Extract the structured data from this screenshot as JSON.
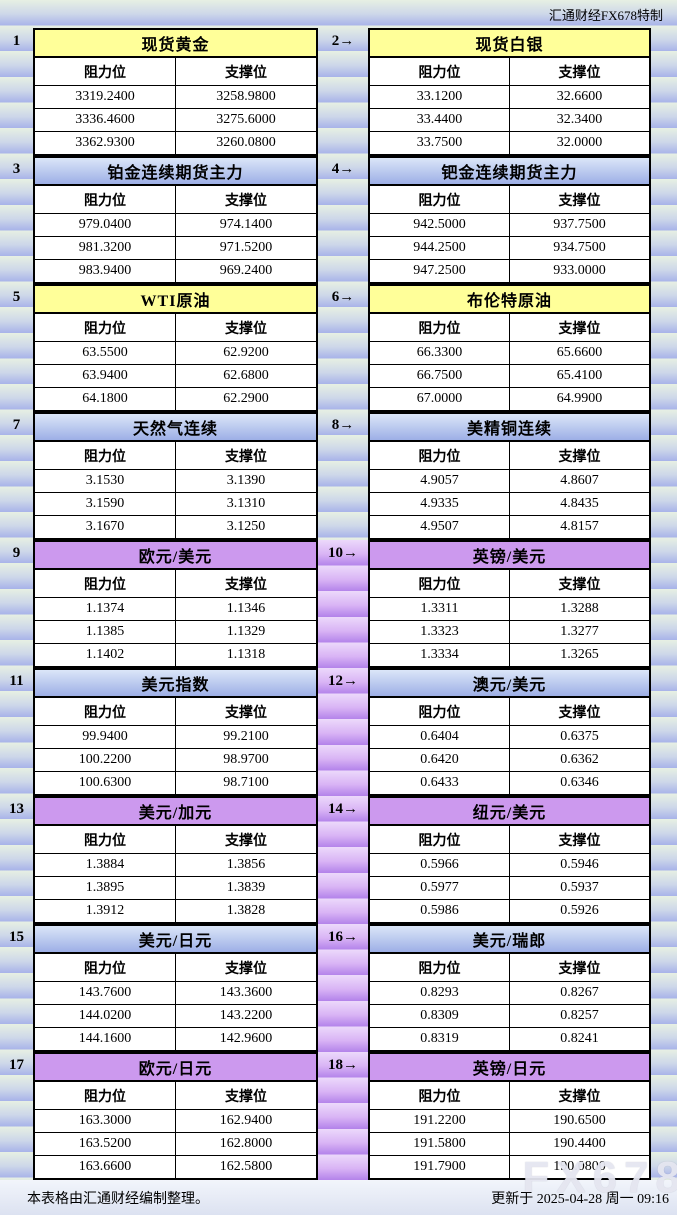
{
  "header": {
    "credit": "汇通财经FX678特制"
  },
  "labels": {
    "resistance": "阻力位",
    "support": "支撑位"
  },
  "footer": {
    "note": "本表格由汇通财经编制整理。",
    "updated": "更新于 2025-04-28 周一 09:16"
  },
  "watermark": "FX678",
  "colors": {
    "yellow_header": "#ffff99",
    "blue_header_top": "#dbe6f8",
    "blue_header_bottom": "#9dafe6",
    "purple_header": "#cc99ee",
    "gutter_purple_top": "#ecd9fb",
    "gutter_purple_bottom": "#b383ea",
    "stripe_green": "#e7f0e3",
    "stripe_blue": "#a8b3e9"
  },
  "sections": [
    {
      "gutter_purple": false,
      "left": {
        "num": "1",
        "title": "现货黄金",
        "theme": "yellow",
        "rows": [
          [
            "3319.2400",
            "3258.9800"
          ],
          [
            "3336.4600",
            "3275.6000"
          ],
          [
            "3362.9300",
            "3260.0800"
          ]
        ]
      },
      "right": {
        "num": "2→",
        "title": "现货白银",
        "theme": "yellow",
        "rows": [
          [
            "33.1200",
            "32.6600"
          ],
          [
            "33.4400",
            "32.3400"
          ],
          [
            "33.7500",
            "32.0000"
          ]
        ]
      }
    },
    {
      "gutter_purple": false,
      "left": {
        "num": "3",
        "title": "铂金连续期货主力",
        "theme": "blue",
        "rows": [
          [
            "979.0400",
            "974.1400"
          ],
          [
            "981.3200",
            "971.5200"
          ],
          [
            "983.9400",
            "969.2400"
          ]
        ]
      },
      "right": {
        "num": "4→",
        "title": "钯金连续期货主力",
        "theme": "blue",
        "rows": [
          [
            "942.5000",
            "937.7500"
          ],
          [
            "944.2500",
            "934.7500"
          ],
          [
            "947.2500",
            "933.0000"
          ]
        ]
      }
    },
    {
      "gutter_purple": false,
      "left": {
        "num": "5",
        "title": "WTI原油",
        "theme": "yellow",
        "rows": [
          [
            "63.5500",
            "62.9200"
          ],
          [
            "63.9400",
            "62.6800"
          ],
          [
            "64.1800",
            "62.2900"
          ]
        ]
      },
      "right": {
        "num": "6→",
        "title": "布伦特原油",
        "theme": "yellow",
        "rows": [
          [
            "66.3300",
            "65.6600"
          ],
          [
            "66.7500",
            "65.4100"
          ],
          [
            "67.0000",
            "64.9900"
          ]
        ]
      }
    },
    {
      "gutter_purple": false,
      "left": {
        "num": "7",
        "title": "天然气连续",
        "theme": "blue",
        "rows": [
          [
            "3.1530",
            "3.1390"
          ],
          [
            "3.1590",
            "3.1310"
          ],
          [
            "3.1670",
            "3.1250"
          ]
        ]
      },
      "right": {
        "num": "8→",
        "title": "美精铜连续",
        "theme": "blue",
        "rows": [
          [
            "4.9057",
            "4.8607"
          ],
          [
            "4.9335",
            "4.8435"
          ],
          [
            "4.9507",
            "4.8157"
          ]
        ]
      }
    },
    {
      "gutter_purple": true,
      "left": {
        "num": "9",
        "title": "欧元/美元",
        "theme": "purple",
        "rows": [
          [
            "1.1374",
            "1.1346"
          ],
          [
            "1.1385",
            "1.1329"
          ],
          [
            "1.1402",
            "1.1318"
          ]
        ]
      },
      "right": {
        "num": "10→",
        "title": "英镑/美元",
        "theme": "purple",
        "rows": [
          [
            "1.3311",
            "1.3288"
          ],
          [
            "1.3323",
            "1.3277"
          ],
          [
            "1.3334",
            "1.3265"
          ]
        ]
      }
    },
    {
      "gutter_purple": true,
      "left": {
        "num": "11",
        "title": "美元指数",
        "theme": "blue",
        "rows": [
          [
            "99.9400",
            "99.2100"
          ],
          [
            "100.2200",
            "98.9700"
          ],
          [
            "100.6300",
            "98.7100"
          ]
        ]
      },
      "right": {
        "num": "12→",
        "title": "澳元/美元",
        "theme": "blue",
        "rows": [
          [
            "0.6404",
            "0.6375"
          ],
          [
            "0.6420",
            "0.6362"
          ],
          [
            "0.6433",
            "0.6346"
          ]
        ]
      }
    },
    {
      "gutter_purple": true,
      "left": {
        "num": "13",
        "title": "美元/加元",
        "theme": "purple",
        "rows": [
          [
            "1.3884",
            "1.3856"
          ],
          [
            "1.3895",
            "1.3839"
          ],
          [
            "1.3912",
            "1.3828"
          ]
        ]
      },
      "right": {
        "num": "14→",
        "title": "纽元/美元",
        "theme": "purple",
        "rows": [
          [
            "0.5966",
            "0.5946"
          ],
          [
            "0.5977",
            "0.5937"
          ],
          [
            "0.5986",
            "0.5926"
          ]
        ]
      }
    },
    {
      "gutter_purple": true,
      "left": {
        "num": "15",
        "title": "美元/日元",
        "theme": "blue",
        "rows": [
          [
            "143.7600",
            "143.3600"
          ],
          [
            "144.0200",
            "143.2200"
          ],
          [
            "144.1600",
            "142.9600"
          ]
        ]
      },
      "right": {
        "num": "16→",
        "title": "美元/瑞郎",
        "theme": "blue",
        "rows": [
          [
            "0.8293",
            "0.8267"
          ],
          [
            "0.8309",
            "0.8257"
          ],
          [
            "0.8319",
            "0.8241"
          ]
        ]
      }
    },
    {
      "gutter_purple": true,
      "left": {
        "num": "17",
        "title": "欧元/日元",
        "theme": "purple",
        "rows": [
          [
            "163.3000",
            "162.9400"
          ],
          [
            "163.5200",
            "162.8000"
          ],
          [
            "163.6600",
            "162.5800"
          ]
        ]
      },
      "right": {
        "num": "18→",
        "title": "英镑/日元",
        "theme": "purple",
        "rows": [
          [
            "191.2200",
            "190.6500"
          ],
          [
            "191.5800",
            "190.4400"
          ],
          [
            "191.7900",
            "190.0800"
          ]
        ]
      }
    }
  ]
}
